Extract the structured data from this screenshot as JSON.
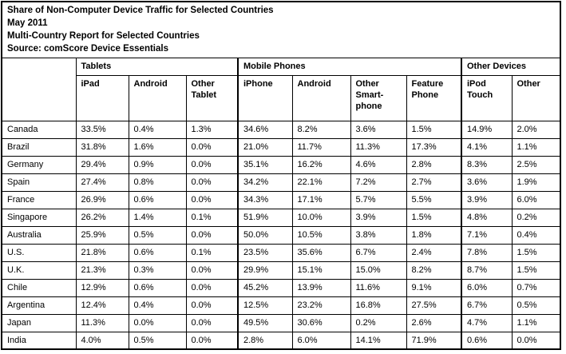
{
  "colors": {
    "background": "#ffffff",
    "border": "#000000",
    "text": "#000000"
  },
  "chart_data": {
    "type": "table",
    "title": "Share of Non-Computer Device Traffic for Selected Countries",
    "date": "May 2011",
    "report_name": "Multi-Country Report for Selected Countries",
    "source": "Source: comScore Device Essentials",
    "column_groups": [
      {
        "label": "Tablets",
        "span": 3
      },
      {
        "label": "Mobile Phones",
        "span": 4
      },
      {
        "label": "Other Devices",
        "span": 2
      }
    ],
    "columns": [
      "iPad",
      "Android",
      "Other Tablet",
      "iPhone",
      "Android",
      "Other Smart-phone",
      "Feature Phone",
      "iPod Touch",
      "Other"
    ],
    "rows": [
      {
        "country": "Canada",
        "values": [
          "33.5%",
          "0.4%",
          "1.3%",
          "34.6%",
          "8.2%",
          "3.6%",
          "1.5%",
          "14.9%",
          "2.0%"
        ]
      },
      {
        "country": "Brazil",
        "values": [
          "31.8%",
          "1.6%",
          "0.0%",
          "21.0%",
          "11.7%",
          "11.3%",
          "17.3%",
          "4.1%",
          "1.1%"
        ]
      },
      {
        "country": "Germany",
        "values": [
          "29.4%",
          "0.9%",
          "0.0%",
          "35.1%",
          "16.2%",
          "4.6%",
          "2.8%",
          "8.3%",
          "2.5%"
        ]
      },
      {
        "country": "Spain",
        "values": [
          "27.4%",
          "0.8%",
          "0.0%",
          "34.2%",
          "22.1%",
          "7.2%",
          "2.7%",
          "3.6%",
          "1.9%"
        ]
      },
      {
        "country": "France",
        "values": [
          "26.9%",
          "0.6%",
          "0.0%",
          "34.3%",
          "17.1%",
          "5.7%",
          "5.5%",
          "3.9%",
          "6.0%"
        ]
      },
      {
        "country": "Singapore",
        "values": [
          "26.2%",
          "1.4%",
          "0.1%",
          "51.9%",
          "10.0%",
          "3.9%",
          "1.5%",
          "4.8%",
          "0.2%"
        ]
      },
      {
        "country": "Australia",
        "values": [
          "25.9%",
          "0.5%",
          "0.0%",
          "50.0%",
          "10.5%",
          "3.8%",
          "1.8%",
          "7.1%",
          "0.4%"
        ]
      },
      {
        "country": "U.S.",
        "values": [
          "21.8%",
          "0.6%",
          "0.1%",
          "23.5%",
          "35.6%",
          "6.7%",
          "2.4%",
          "7.8%",
          "1.5%"
        ]
      },
      {
        "country": "U.K.",
        "values": [
          "21.3%",
          "0.3%",
          "0.0%",
          "29.9%",
          "15.1%",
          "15.0%",
          "8.2%",
          "8.7%",
          "1.5%"
        ]
      },
      {
        "country": "Chile",
        "values": [
          "12.9%",
          "0.6%",
          "0.0%",
          "45.2%",
          "13.9%",
          "11.6%",
          "9.1%",
          "6.0%",
          "0.7%"
        ]
      },
      {
        "country": "Argentina",
        "values": [
          "12.4%",
          "0.4%",
          "0.0%",
          "12.5%",
          "23.2%",
          "16.8%",
          "27.5%",
          "6.7%",
          "0.5%"
        ]
      },
      {
        "country": "Japan",
        "values": [
          "11.3%",
          "0.0%",
          "0.0%",
          "49.5%",
          "30.6%",
          "0.2%",
          "2.6%",
          "4.7%",
          "1.1%"
        ]
      },
      {
        "country": "India",
        "values": [
          "4.0%",
          "0.5%",
          "0.0%",
          "2.8%",
          "6.0%",
          "14.1%",
          "71.9%",
          "0.6%",
          "0.0%"
        ]
      }
    ]
  }
}
